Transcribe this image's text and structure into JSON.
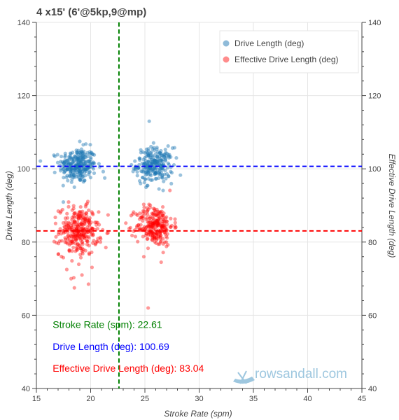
{
  "chart_data": {
    "type": "scatter",
    "title": "4 x15' (6'@5kp,9@mp)",
    "xlabel": "Stroke Rate (spm)",
    "ylabel": "Drive Length (deg)",
    "y2label": "Effective Drive Length (deg)",
    "xlim": [
      15,
      45
    ],
    "ylim": [
      40,
      140
    ],
    "y2lim": [
      40,
      140
    ],
    "x_ticks": [
      15,
      20,
      25,
      30,
      35,
      40,
      45
    ],
    "y_ticks": [
      40,
      60,
      80,
      100,
      120,
      140
    ],
    "grid": true,
    "legend_position": "top-right",
    "series": [
      {
        "name": "Drive Length (deg)",
        "color": "#1f77b4",
        "clusters": [
          {
            "x_center": 18.8,
            "x_spread": 0.85,
            "y_center": 101.0,
            "y_spread": 2.4,
            "count": 260
          },
          {
            "x_center": 25.9,
            "x_spread": 0.85,
            "y_center": 101.0,
            "y_spread": 2.4,
            "count": 240
          }
        ],
        "outliers": [
          {
            "x": 25.4,
            "y": 113.0
          },
          {
            "x": 19.0,
            "y": 107.5
          },
          {
            "x": 26.3,
            "y": 94.5
          },
          {
            "x": 21.3,
            "y": 97.5
          },
          {
            "x": 18.5,
            "y": 95.0
          },
          {
            "x": 24.6,
            "y": 96.0
          }
        ]
      },
      {
        "name": "Effective Drive Length (deg)",
        "color": "#ff0000",
        "clusters": [
          {
            "x_center": 18.9,
            "x_spread": 0.9,
            "y_center": 83.0,
            "y_spread": 3.3,
            "count": 300
          },
          {
            "x_center": 25.9,
            "x_spread": 0.85,
            "y_center": 84.5,
            "y_spread": 2.8,
            "count": 260
          }
        ],
        "outliers": [
          {
            "x": 25.3,
            "y": 62.0
          },
          {
            "x": 18.5,
            "y": 67.5
          },
          {
            "x": 19.8,
            "y": 68.5
          },
          {
            "x": 18.2,
            "y": 70.0
          },
          {
            "x": 19.2,
            "y": 71.0
          },
          {
            "x": 17.8,
            "y": 72.5
          },
          {
            "x": 26.5,
            "y": 74.5
          },
          {
            "x": 24.9,
            "y": 76.0
          },
          {
            "x": 20.9,
            "y": 80.0
          },
          {
            "x": 21.4,
            "y": 78.5
          }
        ]
      }
    ],
    "reference_lines": [
      {
        "orientation": "vertical",
        "value": 22.61,
        "color": "#008000"
      },
      {
        "orientation": "horizontal",
        "value": 100.69,
        "color": "#0000ff"
      },
      {
        "orientation": "horizontal",
        "value": 83.04,
        "color": "#ff0000"
      }
    ],
    "annotations": [
      {
        "text": "Stroke Rate (spm): 22.61",
        "color": "#008000",
        "x": 16.5,
        "y": 57.5
      },
      {
        "text": "Drive Length (deg): 100.69",
        "color": "#0000ff",
        "x": 16.5,
        "y": 51.5
      },
      {
        "text": "Effective Drive Length (deg): 83.04",
        "color": "#ff0000",
        "x": 16.5,
        "y": 45.5
      }
    ]
  },
  "watermark": {
    "text": "rowsandall.com",
    "icon": "rowing-boat-icon"
  }
}
